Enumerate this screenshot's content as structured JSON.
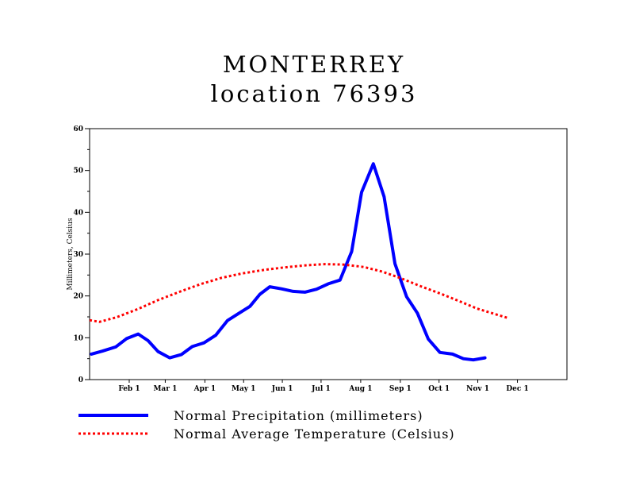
{
  "title": "MONTERREY",
  "subtitle": "location 76393",
  "chart_data": {
    "type": "line",
    "ylabel": "Millimeters, Celsius",
    "ylim": [
      0,
      60
    ],
    "yticks": [
      "0",
      "10",
      "20",
      "30",
      "40",
      "50",
      "60"
    ],
    "xlim": [
      0,
      53
    ],
    "x_tick_labels": [
      {
        "label": "Feb 1",
        "x": 4.4
      },
      {
        "label": "Mar 1",
        "x": 8.4
      },
      {
        "label": "Apr 1",
        "x": 12.8
      },
      {
        "label": "May 1",
        "x": 17.1
      },
      {
        "label": "Jun 1",
        "x": 21.4
      },
      {
        "label": "Jul 1",
        "x": 25.7
      },
      {
        "label": "Aug 1",
        "x": 30.1
      },
      {
        "label": "Sep 1",
        "x": 34.5
      },
      {
        "label": "Oct 1",
        "x": 38.8
      },
      {
        "label": "Nov 1",
        "x": 43.1
      },
      {
        "label": "Dec 1",
        "x": 47.5
      }
    ],
    "grid": false,
    "legend_position": "bottom",
    "series": [
      {
        "name": "Normal Precipitation (millimeters)",
        "color": "#0000ff",
        "style": "solid",
        "points": [
          [
            0.2,
            6.1
          ],
          [
            1.4,
            6.8
          ],
          [
            2.9,
            7.8
          ],
          [
            4.1,
            9.8
          ],
          [
            5.4,
            10.9
          ],
          [
            6.5,
            9.3
          ],
          [
            7.6,
            6.7
          ],
          [
            8.9,
            5.2
          ],
          [
            10.2,
            6.0
          ],
          [
            11.4,
            7.9
          ],
          [
            12.7,
            8.8
          ],
          [
            14.0,
            10.6
          ],
          [
            15.3,
            14.1
          ],
          [
            16.6,
            15.9
          ],
          [
            17.8,
            17.5
          ],
          [
            18.9,
            20.4
          ],
          [
            20.0,
            22.2
          ],
          [
            21.3,
            21.7
          ],
          [
            22.6,
            21.1
          ],
          [
            23.9,
            20.9
          ],
          [
            25.2,
            21.6
          ],
          [
            26.5,
            22.9
          ],
          [
            27.8,
            23.8
          ],
          [
            29.1,
            30.6
          ],
          [
            30.2,
            44.8
          ],
          [
            31.5,
            51.6
          ],
          [
            32.7,
            43.7
          ],
          [
            33.9,
            27.7
          ],
          [
            35.2,
            19.8
          ],
          [
            36.4,
            15.9
          ],
          [
            37.6,
            9.7
          ],
          [
            38.9,
            6.5
          ],
          [
            40.3,
            6.1
          ],
          [
            41.5,
            5.0
          ],
          [
            42.6,
            4.7
          ],
          [
            43.9,
            5.2
          ]
        ]
      },
      {
        "name": "Normal Average Temperature (Celsius)",
        "color": "#ff0000",
        "style": "dotted",
        "points": [
          [
            0.0,
            14.2
          ],
          [
            1.1,
            13.8
          ],
          [
            3.0,
            14.9
          ],
          [
            5.4,
            16.9
          ],
          [
            7.6,
            19.0
          ],
          [
            10.0,
            21.0
          ],
          [
            12.3,
            22.8
          ],
          [
            14.6,
            24.3
          ],
          [
            17.0,
            25.4
          ],
          [
            19.3,
            26.2
          ],
          [
            21.5,
            26.8
          ],
          [
            23.9,
            27.3
          ],
          [
            26.1,
            27.6
          ],
          [
            28.3,
            27.5
          ],
          [
            30.5,
            26.9
          ],
          [
            32.5,
            25.8
          ],
          [
            34.6,
            24.2
          ],
          [
            36.8,
            22.3
          ],
          [
            38.9,
            20.6
          ],
          [
            41.0,
            18.8
          ],
          [
            43.0,
            17.0
          ],
          [
            45.1,
            15.6
          ],
          [
            46.5,
            14.7
          ]
        ]
      }
    ]
  }
}
